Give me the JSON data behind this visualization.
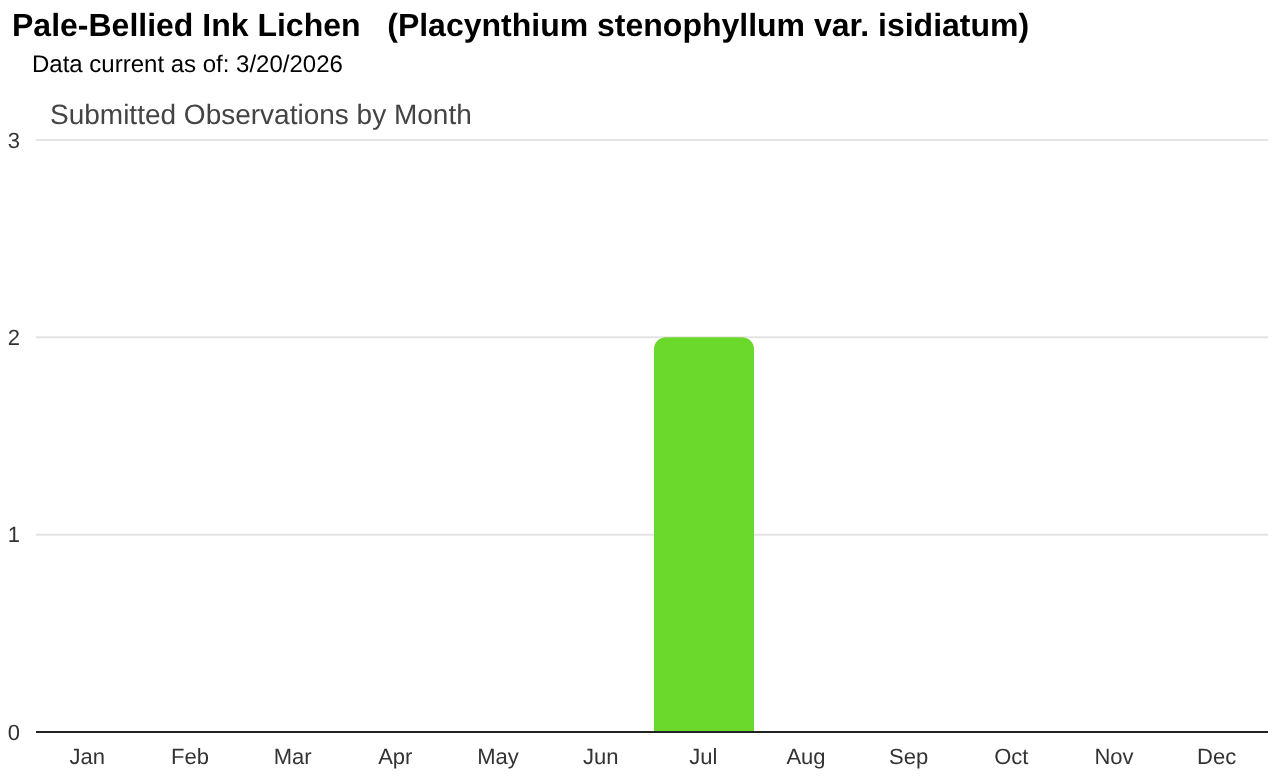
{
  "chart_data": {
    "type": "bar",
    "title": "Pale-Bellied Ink Lichen   (Placynthium stenophyllum var. isidiatum)",
    "subtitle": "Data current as of: 3/20/2026",
    "annotations": [
      "Submitted Observations by Month"
    ],
    "categories": [
      "Jan",
      "Feb",
      "Mar",
      "Apr",
      "May",
      "Jun",
      "Jul",
      "Aug",
      "Sep",
      "Oct",
      "Nov",
      "Dec"
    ],
    "values": [
      0,
      0,
      0,
      0,
      0,
      0,
      2,
      0,
      0,
      0,
      0,
      0
    ],
    "color": "#6ad92c",
    "ylim": [
      0,
      3
    ],
    "yticks": [
      0,
      1,
      2,
      3
    ],
    "grid": "y",
    "legend": false
  }
}
